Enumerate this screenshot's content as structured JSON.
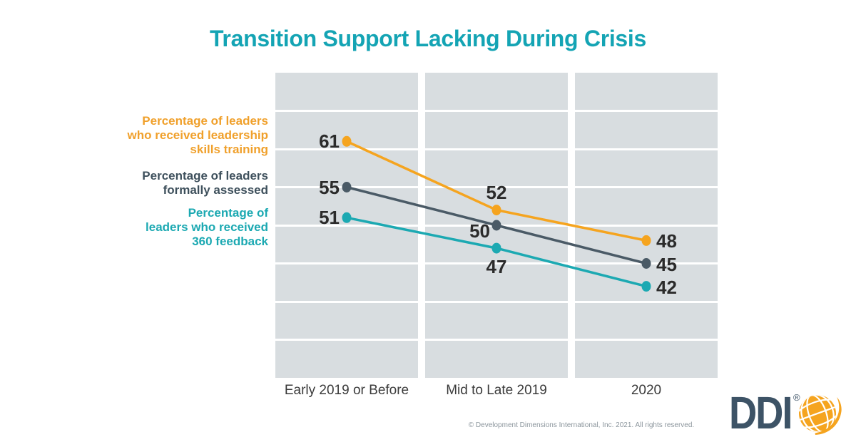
{
  "chart_data": {
    "type": "line",
    "title": "Transition Support Lacking During Crisis",
    "title_color": "#14A4B4",
    "categories": [
      "Early 2019 or Before",
      "Mid to Late 2019",
      "2020"
    ],
    "series": [
      {
        "name": "Percentage of leaders\nwho received leadership\nskills training",
        "values": [
          61,
          52,
          48
        ],
        "color": "#F5A41F",
        "label_color": "#F0A02B"
      },
      {
        "name": "Percentage of leaders\nformally assessed",
        "values": [
          55,
          50,
          45
        ],
        "color": "#4A5A66",
        "label_color": "#3E505C"
      },
      {
        "name": "Percentage of\nleaders who received\n360 feedback",
        "values": [
          51,
          47,
          42
        ],
        "color": "#1CA9B2",
        "label_color": "#1CA9B2"
      }
    ],
    "ylim": [
      30,
      70
    ],
    "gridline_values": [
      35,
      40,
      45,
      50,
      55,
      60,
      65
    ],
    "grid": "horizontal-white-on-gray-panels",
    "legend_position": "left-colored-labels",
    "value_label_positions": [
      [
        "left",
        "top",
        "right"
      ],
      [
        "left",
        "left-low",
        "right"
      ],
      [
        "left",
        "bottom",
        "right"
      ]
    ],
    "panel_color": "#D8DDE0",
    "value_label_color": "#2B2B2B",
    "axis_label_color": "#3B3B3B"
  },
  "footer": {
    "copyright": "© Development Dimensions International, Inc. 2021. All rights reserved.",
    "copyright_color": "#8C969D",
    "logo_text": "DDI",
    "registered_mark": "®",
    "logo_color": "#3D5366",
    "globe_color": "#F5A41F"
  }
}
